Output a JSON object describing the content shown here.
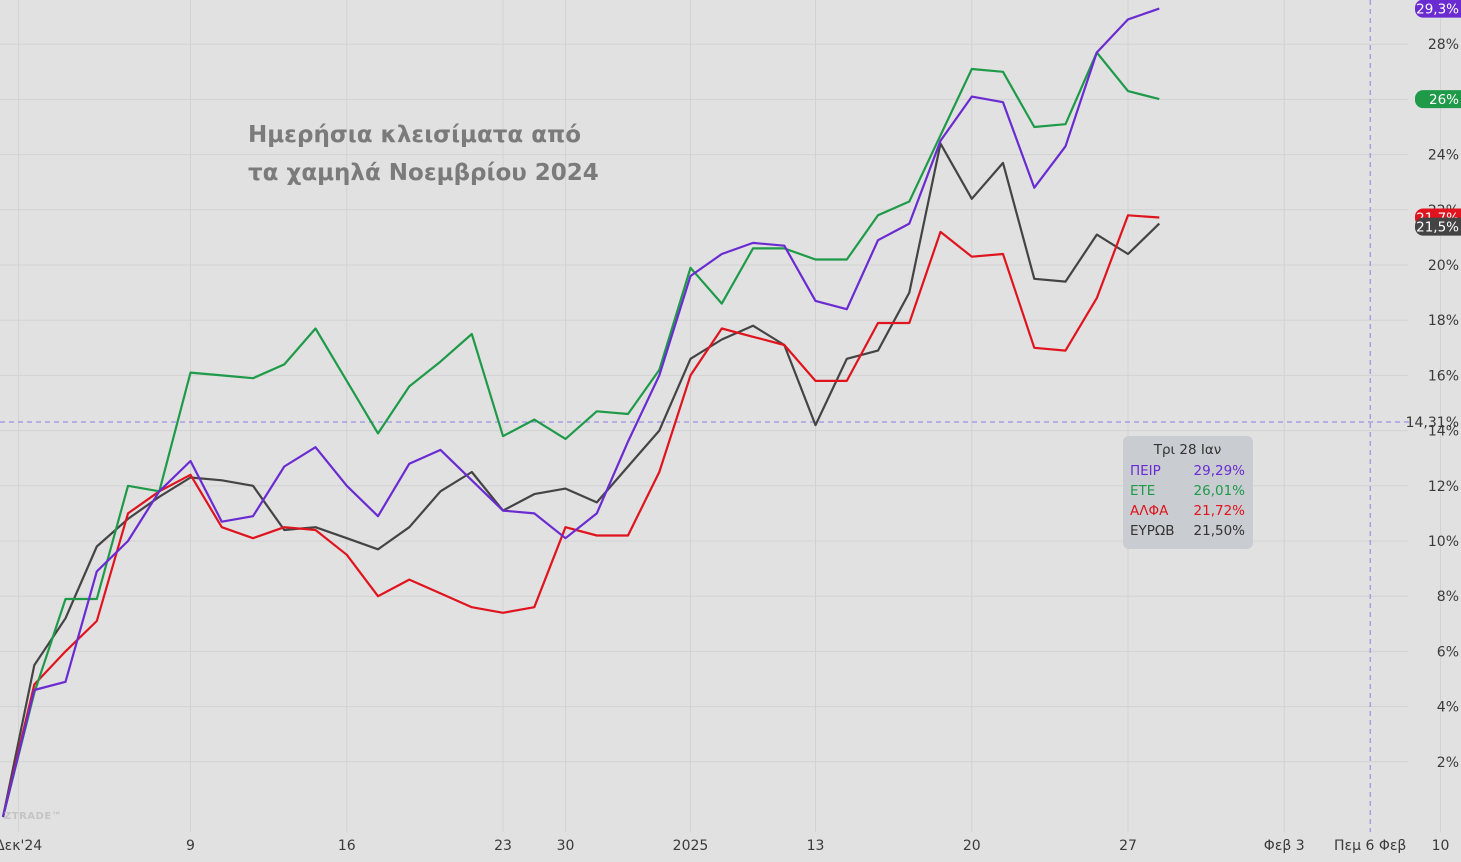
{
  "title_lines": [
    "Ημερήσια κλεισίματα από",
    "τα χαμηλά Νοεμβρίου 2024"
  ],
  "watermark": "ZTRADE™",
  "crosshair_label": "14,31%",
  "tooltip": {
    "date": "Τρι 28 Ιαν",
    "rows": [
      {
        "label": "ΠΕΙΡ",
        "value": "29,29%",
        "color": "#6a2bd1"
      },
      {
        "label": "ΕΤΕ",
        "value": "26,01%",
        "color": "#1f9a49"
      },
      {
        "label": "ΑΛΦΑ",
        "value": "21,72%",
        "color": "#e0141e"
      },
      {
        "label": "ΕΥΡΩΒ",
        "value": "21,50%",
        "color": "#333333"
      }
    ]
  },
  "chart_data": {
    "type": "line",
    "title": "Ημερήσια κλεισίματα από τα χαμηλά Νοεμβρίου 2024",
    "xlabel": "",
    "ylabel": "",
    "ylim": [
      -0.5,
      30
    ],
    "y_ticks": [
      {
        "v": 2,
        "label": "2%"
      },
      {
        "v": 4,
        "label": "4%"
      },
      {
        "v": 6,
        "label": "6%"
      },
      {
        "v": 8,
        "label": "8%"
      },
      {
        "v": 10,
        "label": "10%"
      },
      {
        "v": 12,
        "label": "12%"
      },
      {
        "v": 14,
        "label": "14%"
      },
      {
        "v": 16,
        "label": "16%"
      },
      {
        "v": 18,
        "label": "18%"
      },
      {
        "v": 20,
        "label": "20%"
      },
      {
        "v": 22,
        "label": "22%"
      },
      {
        "v": 24,
        "label": "24%"
      },
      {
        "v": 26,
        "label": "26%"
      },
      {
        "v": 28,
        "label": "28%"
      }
    ],
    "x_ticks": [
      {
        "pos": 0.5,
        "label": "Δεκ'24"
      },
      {
        "pos": 6,
        "label": "9"
      },
      {
        "pos": 11,
        "label": "16"
      },
      {
        "pos": 16,
        "label": "23"
      },
      {
        "pos": 18,
        "label": "30"
      },
      {
        "pos": 22,
        "label": "2025"
      },
      {
        "pos": 26,
        "label": "13"
      },
      {
        "pos": 31,
        "label": "20"
      },
      {
        "pos": 36,
        "label": "27"
      },
      {
        "pos": 41,
        "label": "Φεβ 3"
      },
      {
        "pos": 43.75,
        "label": "Πεμ 6 Φεβ"
      },
      {
        "pos": 46,
        "label": "10"
      }
    ],
    "xlim": [
      0,
      46.5
    ],
    "crosshair": {
      "x": 43.75,
      "y": 14.31
    },
    "series": [
      {
        "name": "ΠΕΙΡ",
        "color": "#6a2bd1",
        "last_label": "29,3%",
        "values": [
          0,
          4.6,
          4.9,
          8.9,
          10.0,
          11.8,
          12.9,
          10.7,
          10.9,
          12.7,
          13.4,
          12.0,
          10.9,
          12.8,
          13.3,
          12.2,
          11.1,
          11.0,
          10.1,
          11.0,
          13.6,
          16.0,
          19.6,
          20.4,
          20.8,
          20.7,
          18.7,
          18.4,
          20.9,
          21.5,
          24.5,
          26.1,
          25.9,
          22.8,
          24.3,
          27.7,
          28.9,
          29.29
        ]
      },
      {
        "name": "ΕΤΕ",
        "color": "#1f9a49",
        "last_label": "26%",
        "values": [
          0,
          4.5,
          7.9,
          7.9,
          12.0,
          11.8,
          16.1,
          16.0,
          15.9,
          16.4,
          17.7,
          15.8,
          13.9,
          15.6,
          16.5,
          17.5,
          13.8,
          14.4,
          13.7,
          14.7,
          14.6,
          16.2,
          19.9,
          18.6,
          20.6,
          20.6,
          20.2,
          20.2,
          21.8,
          22.3,
          24.7,
          27.1,
          27.0,
          25.0,
          25.1,
          27.7,
          26.3,
          26.01
        ]
      },
      {
        "name": "ΑΛΦΑ",
        "color": "#e0141e",
        "last_label": "21,7%",
        "values": [
          0,
          4.8,
          6.0,
          7.1,
          11.0,
          11.8,
          12.4,
          10.5,
          10.1,
          10.5,
          10.4,
          9.5,
          8.0,
          8.6,
          8.1,
          7.6,
          7.4,
          7.6,
          10.5,
          10.2,
          10.2,
          12.5,
          16.0,
          17.7,
          17.4,
          17.1,
          15.8,
          15.8,
          17.9,
          17.9,
          21.2,
          20.3,
          20.4,
          17.0,
          16.9,
          18.8,
          21.8,
          21.72
        ]
      },
      {
        "name": "ΕΥΡΩΒ",
        "color": "#444444",
        "last_label": "21,5%",
        "values": [
          0,
          5.5,
          7.2,
          9.8,
          10.8,
          11.6,
          12.3,
          12.2,
          12.0,
          10.4,
          10.5,
          10.1,
          9.7,
          10.5,
          11.8,
          12.5,
          11.1,
          11.7,
          11.9,
          11.4,
          12.7,
          14.0,
          16.6,
          17.3,
          17.8,
          17.1,
          14.2,
          16.6,
          16.9,
          19.0,
          24.4,
          22.4,
          23.7,
          19.5,
          19.4,
          21.1,
          20.4,
          21.5
        ]
      }
    ]
  }
}
